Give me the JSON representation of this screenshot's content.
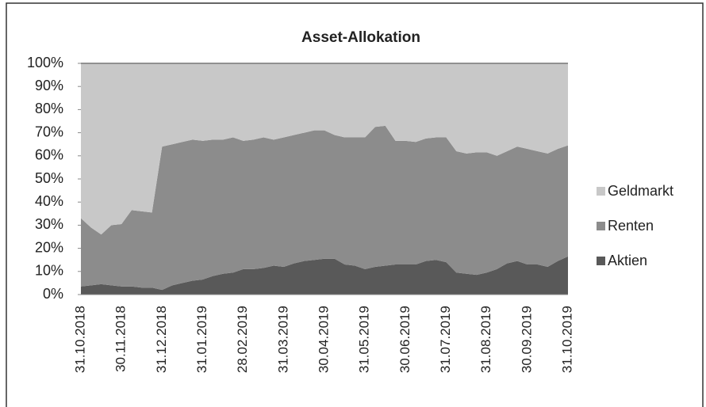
{
  "chart_data": {
    "type": "stacked_area",
    "title": "Asset-Allokation",
    "categories": [
      "31.10.2018",
      null,
      null,
      null,
      "30.11.2018",
      null,
      null,
      null,
      "31.12.2018",
      null,
      null,
      null,
      "31.01.2019",
      null,
      null,
      null,
      "28.02.2019",
      null,
      null,
      null,
      "31.03.2019",
      null,
      null,
      null,
      "30.04.2019",
      null,
      null,
      null,
      "31.05.2019",
      null,
      null,
      null,
      "30.06.2019",
      null,
      null,
      null,
      "31.07.2019",
      null,
      null,
      null,
      "31.08.2019",
      null,
      null,
      null,
      "30.09.2019",
      null,
      null,
      null,
      "31.10.2019"
    ],
    "series": [
      {
        "name": "Aktien",
        "color": "#595959",
        "values": [
          3.5,
          4,
          4.5,
          4,
          3.5,
          3.5,
          3,
          3,
          2,
          4,
          5,
          6,
          6.5,
          8,
          9,
          9.5,
          11,
          11,
          11.5,
          12.5,
          12,
          13.5,
          14.5,
          15,
          15.5,
          15.5,
          13,
          12.5,
          11,
          12,
          12.5,
          13,
          13,
          13,
          14.5,
          15,
          14,
          9.5,
          9,
          8.5,
          9.5,
          11,
          13.5,
          14.5,
          13,
          13,
          12,
          14.5,
          16.5
        ]
      },
      {
        "name": "Renten",
        "color": "#8c8c8c",
        "values": [
          29.5,
          25,
          21.5,
          26,
          27,
          33,
          33,
          32.5,
          62,
          61,
          61,
          61,
          60,
          59,
          58,
          58.5,
          55.5,
          56,
          56.5,
          54.5,
          56,
          55.5,
          55.5,
          56,
          55.5,
          53.5,
          55,
          55.5,
          57,
          60.5,
          60.5,
          53.5,
          53.5,
          53,
          53,
          53,
          54,
          52.5,
          52,
          53,
          52,
          49,
          48.5,
          49.5,
          50,
          49,
          49,
          48.5,
          48
        ]
      },
      {
        "name": "Geldmarkt",
        "color": "#c8c8c8",
        "values": [
          67,
          71,
          74,
          70,
          69.5,
          63.5,
          64,
          64.5,
          36,
          35,
          34,
          33,
          33.5,
          33,
          33,
          32,
          33.5,
          33,
          32,
          33,
          32,
          31,
          30,
          29,
          29,
          31,
          32,
          32,
          32,
          27.5,
          27,
          33.5,
          33.5,
          34,
          32.5,
          32,
          32,
          38,
          39,
          38.5,
          38.5,
          40,
          38,
          36,
          37,
          38,
          39,
          37,
          35.5
        ]
      }
    ],
    "ylim": [
      0,
      100
    ],
    "yticks": [
      {
        "value": 0,
        "label": "0%"
      },
      {
        "value": 10,
        "label": "10%"
      },
      {
        "value": 20,
        "label": "20%"
      },
      {
        "value": 30,
        "label": "30%"
      },
      {
        "value": 40,
        "label": "40%"
      },
      {
        "value": 50,
        "label": "50%"
      },
      {
        "value": 60,
        "label": "60%"
      },
      {
        "value": 70,
        "label": "70%"
      },
      {
        "value": 80,
        "label": "80%"
      },
      {
        "value": 90,
        "label": "90%"
      },
      {
        "value": 100,
        "label": "100%"
      }
    ],
    "legend": "right"
  }
}
